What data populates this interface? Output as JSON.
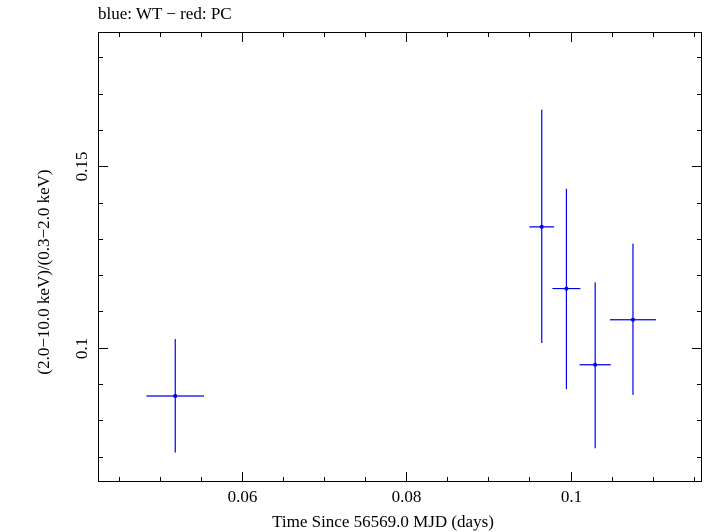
{
  "chart_data": {
    "type": "scatter",
    "title": "blue: WT − red: PC",
    "xlabel": "Time Since 56569.0 MJD (days)",
    "ylabel": "(2.0−10.0 keV)/(0.3−2.0 keV)",
    "xlim": [
      0.0425,
      0.116
    ],
    "ylim": [
      0.063,
      0.187
    ],
    "x_ticks": [
      {
        "value": 0.06,
        "label": "0.06"
      },
      {
        "value": 0.08,
        "label": "0.08"
      },
      {
        "value": 0.1,
        "label": "0.1"
      }
    ],
    "y_ticks": [
      {
        "value": 0.1,
        "label": "0.1"
      },
      {
        "value": 0.15,
        "label": "0.15"
      }
    ],
    "x_minor_step": 0.005,
    "y_minor_step": 0.01,
    "grid": false,
    "series": [
      {
        "name": "WT",
        "color": "#0000ee",
        "points": [
          {
            "x": 0.0519,
            "xerr": 0.0035,
            "y": 0.0867,
            "yerr_lo": 0.0156,
            "yerr_hi": 0.0157
          },
          {
            "x": 0.0965,
            "xerr": 0.0015,
            "y": 0.1333,
            "yerr_lo": 0.032,
            "yerr_hi": 0.0323
          },
          {
            "x": 0.0995,
            "xerr": 0.0017,
            "y": 0.1163,
            "yerr_lo": 0.0277,
            "yerr_hi": 0.0275
          },
          {
            "x": 0.103,
            "xerr": 0.0019,
            "y": 0.0953,
            "yerr_lo": 0.023,
            "yerr_hi": 0.0227
          },
          {
            "x": 0.1076,
            "xerr": 0.0028,
            "y": 0.1077,
            "yerr_lo": 0.0207,
            "yerr_hi": 0.021
          }
        ]
      },
      {
        "name": "PC",
        "color": "#ff0000",
        "points": []
      }
    ]
  }
}
